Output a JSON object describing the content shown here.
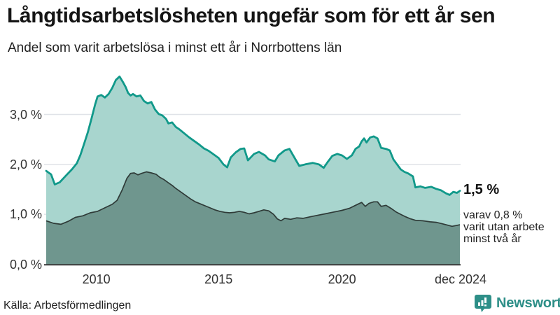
{
  "header": {
    "title": "Långtidsarbetslösheten ungefär som för ett år sen",
    "subtitle": "Andel som varit arbetslösa i minst ett år i Norrbottens län"
  },
  "colors": {
    "accent_teal": "#11998a",
    "fill_light": "#a8d5ce",
    "fill_dark": "#6f968e",
    "line_dark": "#2f3b38",
    "grid": "#e0e3e8",
    "baseline": "#3a3a3a",
    "brand_teal": "#2e8f88"
  },
  "chart_data": {
    "type": "area",
    "title": "Långtidsarbetslösheten ungefär som för ett år sen",
    "subtitle": "Andel som varit arbetslösa i minst ett år i Norrbottens län",
    "xlabel": "",
    "ylabel": "",
    "x_range": [
      2008.0,
      2024.92
    ],
    "y_range": [
      0,
      3.95
    ],
    "grid": true,
    "legend_position": "none",
    "y_ticks": [
      {
        "v": 0,
        "label": "0,0 %"
      },
      {
        "v": 1,
        "label": "1,0 %"
      },
      {
        "v": 2,
        "label": "2,0 %"
      },
      {
        "v": 3,
        "label": "3,0 %"
      }
    ],
    "x_ticks": [
      {
        "x": 2010.05,
        "label": "2010"
      },
      {
        "x": 2015.05,
        "label": "2015"
      },
      {
        "x": 2020.1,
        "label": "2020"
      },
      {
        "x": 2024.95,
        "label": "dec 2024"
      }
    ],
    "series": [
      {
        "name": "Andel arbetslösa minst ett år",
        "end_value": 1.5,
        "points": [
          [
            2008.0,
            1.87
          ],
          [
            2008.2,
            1.8
          ],
          [
            2008.35,
            1.6
          ],
          [
            2008.55,
            1.64
          ],
          [
            2008.8,
            1.77
          ],
          [
            2009.05,
            1.9
          ],
          [
            2009.25,
            2.02
          ],
          [
            2009.4,
            2.19
          ],
          [
            2009.55,
            2.41
          ],
          [
            2009.7,
            2.64
          ],
          [
            2009.85,
            2.91
          ],
          [
            2010.0,
            3.2
          ],
          [
            2010.1,
            3.36
          ],
          [
            2010.25,
            3.39
          ],
          [
            2010.4,
            3.34
          ],
          [
            2010.55,
            3.41
          ],
          [
            2010.7,
            3.53
          ],
          [
            2010.85,
            3.69
          ],
          [
            2011.0,
            3.76
          ],
          [
            2011.15,
            3.64
          ],
          [
            2011.25,
            3.55
          ],
          [
            2011.35,
            3.43
          ],
          [
            2011.45,
            3.38
          ],
          [
            2011.55,
            3.41
          ],
          [
            2011.7,
            3.36
          ],
          [
            2011.85,
            3.38
          ],
          [
            2012.0,
            3.27
          ],
          [
            2012.15,
            3.22
          ],
          [
            2012.3,
            3.25
          ],
          [
            2012.45,
            3.1
          ],
          [
            2012.6,
            3.01
          ],
          [
            2012.75,
            2.98
          ],
          [
            2012.9,
            2.91
          ],
          [
            2013.0,
            2.82
          ],
          [
            2013.15,
            2.84
          ],
          [
            2013.3,
            2.75
          ],
          [
            2013.45,
            2.7
          ],
          [
            2013.65,
            2.62
          ],
          [
            2013.85,
            2.54
          ],
          [
            2014.05,
            2.47
          ],
          [
            2014.25,
            2.4
          ],
          [
            2014.45,
            2.32
          ],
          [
            2014.65,
            2.27
          ],
          [
            2014.85,
            2.2
          ],
          [
            2015.05,
            2.13
          ],
          [
            2015.25,
            2.0
          ],
          [
            2015.4,
            1.94
          ],
          [
            2015.55,
            2.14
          ],
          [
            2015.75,
            2.24
          ],
          [
            2015.95,
            2.31
          ],
          [
            2016.1,
            2.32
          ],
          [
            2016.25,
            2.08
          ],
          [
            2016.5,
            2.21
          ],
          [
            2016.7,
            2.25
          ],
          [
            2016.95,
            2.18
          ],
          [
            2017.1,
            2.1
          ],
          [
            2017.35,
            2.06
          ],
          [
            2017.5,
            2.18
          ],
          [
            2017.75,
            2.28
          ],
          [
            2017.95,
            2.31
          ],
          [
            2018.1,
            2.18
          ],
          [
            2018.35,
            1.97
          ],
          [
            2018.6,
            2.0
          ],
          [
            2018.9,
            2.03
          ],
          [
            2019.15,
            2.0
          ],
          [
            2019.35,
            1.93
          ],
          [
            2019.5,
            2.04
          ],
          [
            2019.7,
            2.17
          ],
          [
            2019.9,
            2.21
          ],
          [
            2020.1,
            2.18
          ],
          [
            2020.3,
            2.11
          ],
          [
            2020.5,
            2.18
          ],
          [
            2020.65,
            2.31
          ],
          [
            2020.8,
            2.36
          ],
          [
            2020.9,
            2.46
          ],
          [
            2021.0,
            2.52
          ],
          [
            2021.1,
            2.44
          ],
          [
            2021.25,
            2.54
          ],
          [
            2021.4,
            2.56
          ],
          [
            2021.55,
            2.52
          ],
          [
            2021.7,
            2.33
          ],
          [
            2021.9,
            2.31
          ],
          [
            2022.05,
            2.28
          ],
          [
            2022.2,
            2.1
          ],
          [
            2022.35,
            2.0
          ],
          [
            2022.5,
            1.9
          ],
          [
            2022.65,
            1.85
          ],
          [
            2022.8,
            1.82
          ],
          [
            2023.0,
            1.76
          ],
          [
            2023.1,
            1.54
          ],
          [
            2023.3,
            1.56
          ],
          [
            2023.5,
            1.53
          ],
          [
            2023.75,
            1.55
          ],
          [
            2023.95,
            1.51
          ],
          [
            2024.15,
            1.48
          ],
          [
            2024.35,
            1.42
          ],
          [
            2024.5,
            1.39
          ],
          [
            2024.65,
            1.45
          ],
          [
            2024.8,
            1.43
          ],
          [
            2024.92,
            1.47
          ]
        ]
      },
      {
        "name": "varav utan arbete minst två år",
        "end_value": 0.8,
        "points": [
          [
            2008.0,
            0.87
          ],
          [
            2008.3,
            0.82
          ],
          [
            2008.6,
            0.8
          ],
          [
            2008.9,
            0.86
          ],
          [
            2009.2,
            0.94
          ],
          [
            2009.5,
            0.97
          ],
          [
            2009.8,
            1.03
          ],
          [
            2010.1,
            1.06
          ],
          [
            2010.4,
            1.13
          ],
          [
            2010.7,
            1.2
          ],
          [
            2010.9,
            1.28
          ],
          [
            2011.1,
            1.48
          ],
          [
            2011.3,
            1.72
          ],
          [
            2011.45,
            1.82
          ],
          [
            2011.6,
            1.83
          ],
          [
            2011.75,
            1.79
          ],
          [
            2011.9,
            1.82
          ],
          [
            2012.1,
            1.85
          ],
          [
            2012.3,
            1.83
          ],
          [
            2012.5,
            1.8
          ],
          [
            2012.65,
            1.74
          ],
          [
            2012.8,
            1.7
          ],
          [
            2013.0,
            1.63
          ],
          [
            2013.15,
            1.58
          ],
          [
            2013.3,
            1.52
          ],
          [
            2013.5,
            1.45
          ],
          [
            2013.7,
            1.38
          ],
          [
            2013.9,
            1.31
          ],
          [
            2014.1,
            1.25
          ],
          [
            2014.3,
            1.21
          ],
          [
            2014.5,
            1.17
          ],
          [
            2014.7,
            1.13
          ],
          [
            2014.9,
            1.09
          ],
          [
            2015.1,
            1.06
          ],
          [
            2015.3,
            1.04
          ],
          [
            2015.5,
            1.03
          ],
          [
            2015.7,
            1.04
          ],
          [
            2015.9,
            1.06
          ],
          [
            2016.1,
            1.04
          ],
          [
            2016.3,
            1.01
          ],
          [
            2016.5,
            1.03
          ],
          [
            2016.7,
            1.06
          ],
          [
            2016.9,
            1.09
          ],
          [
            2017.1,
            1.07
          ],
          [
            2017.3,
            1.0
          ],
          [
            2017.45,
            0.91
          ],
          [
            2017.6,
            0.87
          ],
          [
            2017.75,
            0.92
          ],
          [
            2018.0,
            0.9
          ],
          [
            2018.25,
            0.93
          ],
          [
            2018.5,
            0.92
          ],
          [
            2018.8,
            0.95
          ],
          [
            2019.1,
            0.98
          ],
          [
            2019.4,
            1.01
          ],
          [
            2019.7,
            1.04
          ],
          [
            2019.9,
            1.06
          ],
          [
            2020.1,
            1.08
          ],
          [
            2020.4,
            1.12
          ],
          [
            2020.65,
            1.18
          ],
          [
            2020.9,
            1.24
          ],
          [
            2021.05,
            1.16
          ],
          [
            2021.2,
            1.22
          ],
          [
            2021.4,
            1.25
          ],
          [
            2021.55,
            1.25
          ],
          [
            2021.7,
            1.16
          ],
          [
            2021.9,
            1.18
          ],
          [
            2022.1,
            1.12
          ],
          [
            2022.3,
            1.05
          ],
          [
            2022.5,
            1.0
          ],
          [
            2022.7,
            0.95
          ],
          [
            2022.9,
            0.91
          ],
          [
            2023.1,
            0.88
          ],
          [
            2023.4,
            0.87
          ],
          [
            2023.7,
            0.85
          ],
          [
            2023.95,
            0.84
          ],
          [
            2024.2,
            0.81
          ],
          [
            2024.45,
            0.78
          ],
          [
            2024.6,
            0.76
          ],
          [
            2024.8,
            0.78
          ],
          [
            2024.92,
            0.79
          ]
        ]
      }
    ],
    "end_labels": {
      "value_label": "1,5 %",
      "note_lines": [
        "varav 0,8 %",
        "varit utan arbete",
        "minst två år"
      ]
    }
  },
  "footer": {
    "source": "Källa: Arbetsförmedlingen",
    "brand": "Newsworthy"
  }
}
